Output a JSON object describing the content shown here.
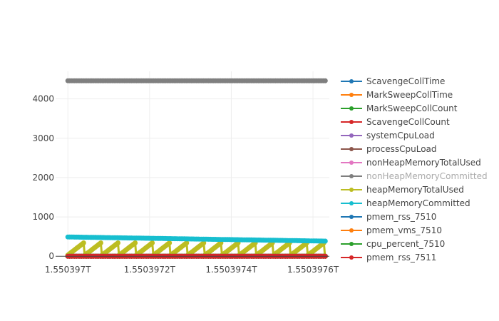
{
  "chart_data": {
    "type": "line",
    "title": "",
    "xlabel": "",
    "ylabel": "",
    "xlim": [
      1550396970,
      1550397640
    ],
    "ylim": [
      -50,
      4700
    ],
    "x_ticks": [
      {
        "value": 1550397000,
        "label": "1.550397T"
      },
      {
        "value": 1550397200,
        "label": "1.5503972T"
      },
      {
        "value": 1550397400,
        "label": "1.5503974T"
      },
      {
        "value": 1550397600,
        "label": "1.5503976T"
      }
    ],
    "y_ticks": [
      {
        "value": 0,
        "label": "0"
      },
      {
        "value": 1000,
        "label": "1000"
      },
      {
        "value": 2000,
        "label": "2000"
      },
      {
        "value": 3000,
        "label": "3000"
      },
      {
        "value": 4000,
        "label": "4000"
      }
    ],
    "grid": true,
    "legend_position": "right",
    "series": [
      {
        "name": "ScavengeCollTime",
        "color": "#1f77b4",
        "shape": "flat",
        "y_start": 0,
        "y_end": 0
      },
      {
        "name": "MarkSweepCollTime",
        "color": "#ff7f0e",
        "shape": "flat",
        "y_start": 0,
        "y_end": 0
      },
      {
        "name": "MarkSweepCollCount",
        "color": "#2ca02c",
        "shape": "flat",
        "y_start": 0,
        "y_end": 0
      },
      {
        "name": "ScavengeCollCount",
        "color": "#d62728",
        "shape": "flat",
        "y_start": 0,
        "y_end": 0
      },
      {
        "name": "systemCpuLoad",
        "color": "#9467bd",
        "shape": "flat",
        "y_start": 0,
        "y_end": 0
      },
      {
        "name": "processCpuLoad",
        "color": "#8c564b",
        "shape": "flat",
        "y_start": 0,
        "y_end": 0
      },
      {
        "name": "nonHeapMemoryTotalUsed",
        "color": "#e377c2",
        "shape": "flat",
        "y_start": 0,
        "y_end": 0
      },
      {
        "name": "nonHeapMemoryCommitted",
        "color": "#7f7f7f",
        "shape": "flat",
        "y_start": 4460,
        "y_end": 4460,
        "legend_muted": true
      },
      {
        "name": "heapMemoryTotalUsed",
        "color": "#bcbd22",
        "shape": "sawtooth",
        "low": 30,
        "high": 340,
        "cycles": 15
      },
      {
        "name": "heapMemoryCommitted",
        "color": "#17becf",
        "shape": "flat",
        "y_start": 490,
        "y_end": 385
      },
      {
        "name": "pmem_rss_7510",
        "color": "#1f77b4",
        "shape": "flat",
        "y_start": 0,
        "y_end": 0
      },
      {
        "name": "pmem_vms_7510",
        "color": "#ff7f0e",
        "shape": "flat",
        "y_start": 0,
        "y_end": 0
      },
      {
        "name": "cpu_percent_7510",
        "color": "#2ca02c",
        "shape": "flat",
        "y_start": 0,
        "y_end": 0
      },
      {
        "name": "pmem_rss_7511",
        "color": "#d62728",
        "shape": "flat",
        "y_start": 0,
        "y_end": 0
      }
    ]
  }
}
